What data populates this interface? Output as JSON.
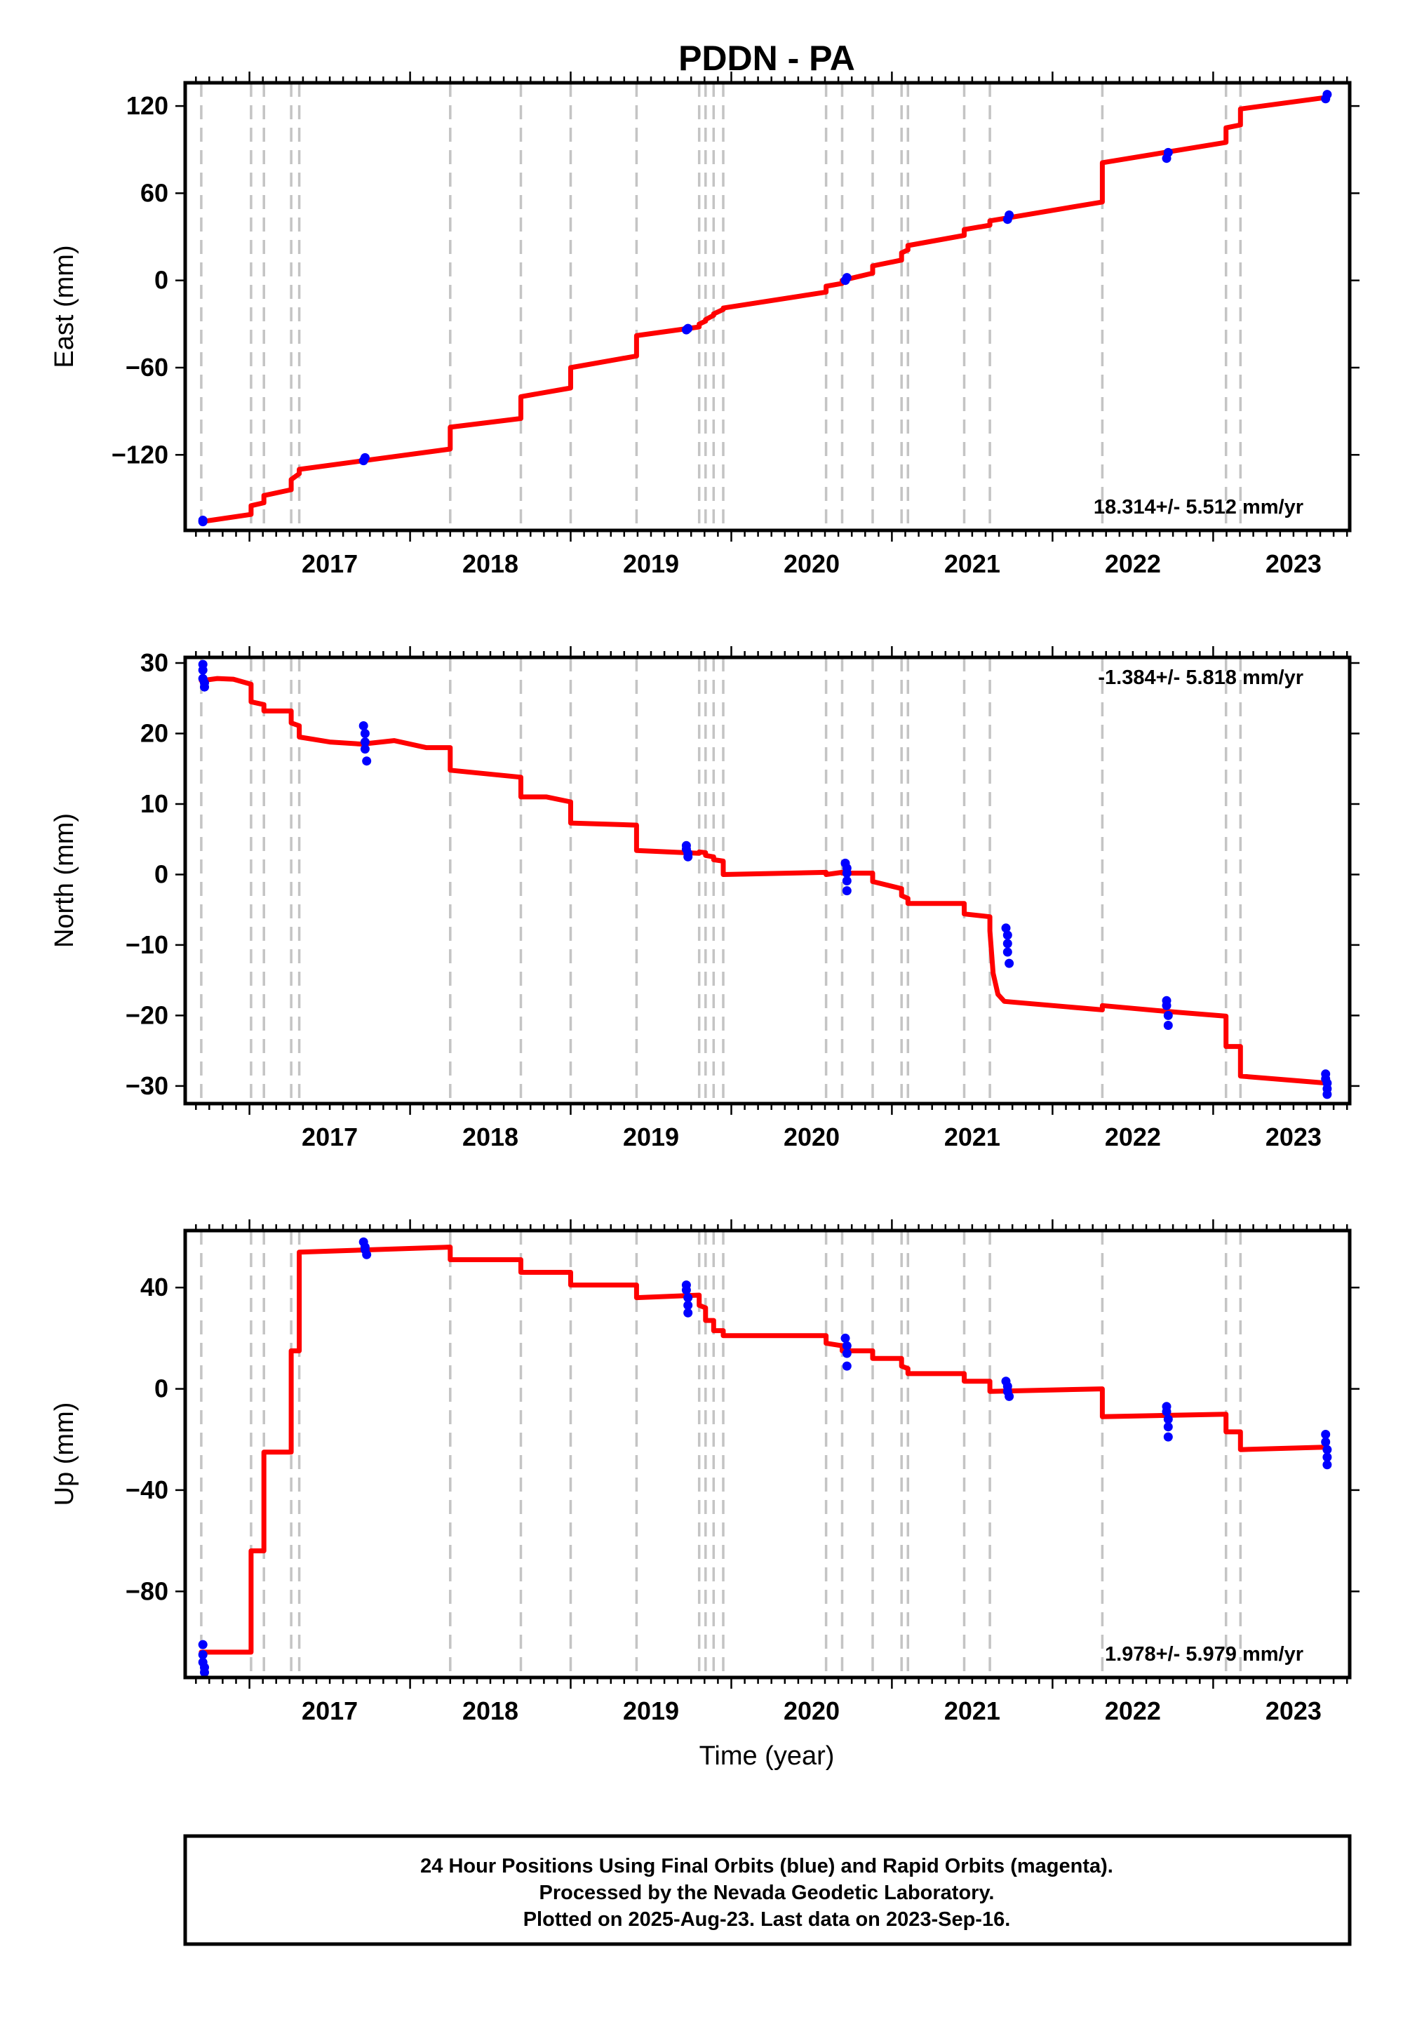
{
  "title": "PDDN - PA",
  "xlabel": "Time (year)",
  "footer": {
    "lines": [
      "24 Hour Positions Using Final Orbits (blue) and Rapid Orbits (magenta).",
      "Processed by the Nevada Geodetic Laboratory.",
      "Plotted on 2025-Aug-23. Last data on 2023-Sep-16."
    ]
  },
  "colors": {
    "model": "#ff0000",
    "final_orbits": "#0000ff",
    "event_lines": "#c4c4c4",
    "frame": "#000000"
  },
  "chart_data": [
    {
      "id": "east",
      "type": "scatter",
      "ylabel": "East (mm)",
      "rate_text": "18.314+/- 5.512 mm/yr",
      "rate_position": "bottom-right",
      "xlim": [
        2016.6,
        2023.85
      ],
      "ylim": [
        -172,
        136
      ],
      "yticks": [
        -120,
        -60,
        0,
        60,
        120
      ],
      "ytick_labels": [
        "−120",
        "−60",
        "0",
        "60",
        "120"
      ],
      "xticks": [
        2017,
        2018,
        2019,
        2020,
        2021,
        2022,
        2023
      ],
      "xtick_labels": [
        "2017",
        "2018",
        "2019",
        "2020",
        "2021",
        "2022",
        "2023"
      ],
      "event_lines": [
        2016.7,
        2017.01,
        2017.09,
        2017.26,
        2017.31,
        2018.25,
        2018.69,
        2019.0,
        2019.41,
        2019.8,
        2019.84,
        2019.89,
        2019.95,
        2020.59,
        2020.69,
        2020.88,
        2021.06,
        2021.1,
        2021.45,
        2021.61,
        2022.31,
        2023.08,
        2023.17
      ],
      "model": {
        "x": [
          2016.7,
          2017.01,
          2017.01,
          2017.09,
          2017.09,
          2017.26,
          2017.26,
          2017.31,
          2017.31,
          2018.25,
          2018.25,
          2018.69,
          2018.69,
          2019.0,
          2019.0,
          2019.41,
          2019.41,
          2019.8,
          2019.8,
          2019.84,
          2019.84,
          2019.89,
          2019.89,
          2019.95,
          2019.95,
          2020.59,
          2020.59,
          2020.69,
          2020.69,
          2020.88,
          2020.88,
          2021.06,
          2021.06,
          2021.1,
          2021.1,
          2021.45,
          2021.45,
          2021.61,
          2021.61,
          2022.31,
          2022.31,
          2023.08,
          2023.08,
          2023.17,
          2023.17,
          2023.71
        ],
        "y": [
          -166,
          -161,
          -155,
          -153,
          -148,
          -144,
          -137,
          -133,
          -130,
          -116,
          -101,
          -95,
          -80,
          -74,
          -60,
          -52,
          -38,
          -32,
          -30,
          -28,
          -27,
          -24,
          -23,
          -20,
          -19,
          -8,
          -4,
          -2,
          0,
          5,
          10,
          14,
          19,
          21,
          24,
          31,
          35,
          38,
          41,
          54,
          81,
          95,
          105,
          107,
          118,
          126
        ]
      },
      "observations": {
        "x": [
          2016.71,
          2016.71,
          2017.71,
          2017.72,
          2019.72,
          2019.73,
          2020.71,
          2020.72,
          2021.72,
          2021.73,
          2022.71,
          2022.72,
          2023.7,
          2023.71
        ],
        "y": [
          -166,
          -165,
          -124,
          -122,
          -34,
          -33,
          0,
          2,
          42,
          45,
          84,
          88,
          125,
          128
        ]
      }
    },
    {
      "id": "north",
      "type": "scatter",
      "ylabel": "North (mm)",
      "rate_text": "-1.384+/- 5.818 mm/yr",
      "rate_position": "top-right",
      "xlim": [
        2016.6,
        2023.85
      ],
      "ylim": [
        -32.5,
        30.8
      ],
      "yticks": [
        -30,
        -20,
        -10,
        0,
        10,
        20,
        30
      ],
      "ytick_labels": [
        "−30",
        "−20",
        "−10",
        "0",
        "10",
        "20",
        "30"
      ],
      "xticks": [
        2017,
        2018,
        2019,
        2020,
        2021,
        2022,
        2023
      ],
      "xtick_labels": [
        "2017",
        "2018",
        "2019",
        "2020",
        "2021",
        "2022",
        "2023"
      ],
      "event_lines": [
        2016.7,
        2017.01,
        2017.09,
        2017.26,
        2017.31,
        2018.25,
        2018.69,
        2019.0,
        2019.41,
        2019.8,
        2019.84,
        2019.89,
        2019.95,
        2020.59,
        2020.69,
        2020.88,
        2021.06,
        2021.1,
        2021.45,
        2021.61,
        2022.31,
        2023.08,
        2023.17
      ],
      "model": {
        "x": [
          2016.7,
          2016.8,
          2016.9,
          2017.01,
          2017.01,
          2017.09,
          2017.09,
          2017.26,
          2017.26,
          2017.31,
          2017.31,
          2017.5,
          2017.7,
          2017.9,
          2018.1,
          2018.25,
          2018.25,
          2018.69,
          2018.69,
          2018.85,
          2019.0,
          2019.0,
          2019.41,
          2019.41,
          2019.8,
          2019.8,
          2019.84,
          2019.84,
          2019.89,
          2019.89,
          2019.95,
          2019.95,
          2020.59,
          2020.59,
          2020.69,
          2020.69,
          2020.88,
          2020.88,
          2021.06,
          2021.06,
          2021.1,
          2021.1,
          2021.45,
          2021.45,
          2021.61,
          2021.61,
          2021.63,
          2021.66,
          2021.7,
          2021.8,
          2022.31,
          2022.31,
          2022.7,
          2023.08,
          2023.08,
          2023.17,
          2023.17,
          2023.71
        ],
        "y": [
          27.5,
          27.8,
          27.7,
          27,
          24.5,
          24.1,
          23.2,
          23.2,
          21.5,
          21.1,
          19.5,
          18.8,
          18.5,
          19,
          18,
          18,
          14.8,
          13.8,
          11,
          11,
          10.3,
          7.3,
          7,
          3.4,
          3,
          3.2,
          3.1,
          2.7,
          2.5,
          2.1,
          1.9,
          0,
          0.3,
          0,
          0.3,
          0.2,
          0.2,
          -1,
          -2,
          -3,
          -3.4,
          -4.1,
          -4.1,
          -5.6,
          -6,
          -8,
          -14,
          -17,
          -18,
          -18.2,
          -19.2,
          -18.6,
          -19.4,
          -20.1,
          -24.4,
          -24.4,
          -28.6,
          -29.6
        ]
      },
      "observations": {
        "x": [
          2016.71,
          2016.71,
          2016.71,
          2016.72,
          2016.72,
          2017.71,
          2017.72,
          2017.72,
          2017.72,
          2017.73,
          2019.72,
          2019.72,
          2019.73,
          2019.73,
          2020.71,
          2020.72,
          2020.72,
          2020.72,
          2020.72,
          2021.71,
          2021.72,
          2021.72,
          2021.72,
          2021.73,
          2022.71,
          2022.71,
          2022.72,
          2022.72,
          2023.7,
          2023.7,
          2023.71,
          2023.71,
          2023.71
        ],
        "y": [
          29.8,
          29.0,
          27.8,
          27.2,
          26.6,
          21.1,
          20.0,
          18.8,
          17.8,
          16.1,
          4.1,
          3.6,
          3.0,
          2.5,
          1.6,
          0.9,
          0.2,
          -0.9,
          -2.3,
          -7.6,
          -8.6,
          -9.8,
          -11.0,
          -12.6,
          -17.9,
          -18.6,
          -20.0,
          -21.4,
          -28.3,
          -29.0,
          -29.6,
          -30.4,
          -31.2
        ]
      }
    },
    {
      "id": "up",
      "type": "scatter",
      "ylabel": "Up (mm)",
      "rate_text": "1.978+/- 5.979 mm/yr",
      "rate_position": "bottom-right",
      "xlim": [
        2016.6,
        2023.85
      ],
      "ylim": [
        -114,
        62.5
      ],
      "yticks": [
        -80,
        -40,
        0,
        40
      ],
      "ytick_labels": [
        "−80",
        "−40",
        "0",
        "40"
      ],
      "xticks": [
        2017,
        2018,
        2019,
        2020,
        2021,
        2022,
        2023
      ],
      "xtick_labels": [
        "2017",
        "2018",
        "2019",
        "2020",
        "2021",
        "2022",
        "2023"
      ],
      "event_lines": [
        2016.7,
        2017.01,
        2017.09,
        2017.26,
        2017.31,
        2018.25,
        2018.69,
        2019.0,
        2019.41,
        2019.8,
        2019.84,
        2019.89,
        2019.95,
        2020.59,
        2020.69,
        2020.88,
        2021.06,
        2021.1,
        2021.45,
        2021.61,
        2022.31,
        2023.08,
        2023.17
      ],
      "model": {
        "x": [
          2016.7,
          2017.01,
          2017.01,
          2017.09,
          2017.09,
          2017.26,
          2017.26,
          2017.31,
          2017.31,
          2018.25,
          2018.25,
          2018.69,
          2018.69,
          2019.0,
          2019.0,
          2019.41,
          2019.41,
          2019.8,
          2019.8,
          2019.84,
          2019.84,
          2019.89,
          2019.89,
          2019.95,
          2019.95,
          2020.59,
          2020.59,
          2020.69,
          2020.69,
          2020.88,
          2020.88,
          2021.06,
          2021.06,
          2021.1,
          2021.1,
          2021.45,
          2021.45,
          2021.61,
          2021.61,
          2022.31,
          2022.31,
          2023.08,
          2023.08,
          2023.17,
          2023.17,
          2023.71
        ],
        "y": [
          -104,
          -104,
          -64,
          -64,
          -25,
          -25,
          15,
          15,
          54,
          56,
          51,
          51,
          46,
          46,
          41,
          41,
          36,
          37,
          33,
          32,
          27,
          27,
          23,
          23,
          21,
          21,
          18,
          17,
          15,
          15,
          12,
          12,
          9,
          8,
          6,
          6,
          3,
          3,
          -1,
          0,
          -11,
          -10,
          -17,
          -17,
          -24,
          -23
        ]
      },
      "observations": {
        "x": [
          2016.71,
          2016.71,
          2016.71,
          2016.72,
          2016.72,
          2017.71,
          2017.72,
          2017.72,
          2017.73,
          2019.72,
          2019.72,
          2019.73,
          2019.73,
          2019.73,
          2020.71,
          2020.72,
          2020.72,
          2020.72,
          2021.71,
          2021.72,
          2021.72,
          2021.73,
          2022.71,
          2022.71,
          2022.72,
          2022.72,
          2022.72,
          2023.7,
          2023.7,
          2023.71,
          2023.71,
          2023.71
        ],
        "y": [
          -101,
          -105,
          -108,
          -110,
          -112,
          58,
          56,
          55,
          53,
          41,
          39,
          36,
          33,
          30,
          20,
          17,
          14,
          9,
          3,
          1,
          -1,
          -3,
          -7,
          -9,
          -12,
          -15,
          -19,
          -18,
          -21,
          -24,
          -27,
          -30
        ]
      }
    }
  ]
}
